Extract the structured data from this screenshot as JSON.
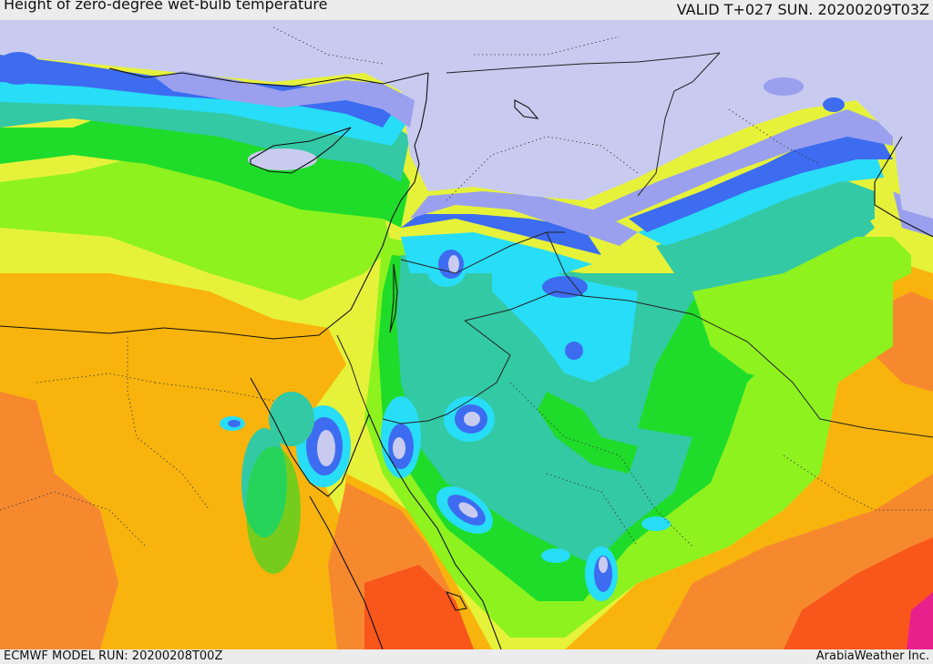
{
  "header": {
    "title": "Height of zero-degree wet-bulb temperature",
    "valid": "VALID T+027 SUN. 20200209T03Z"
  },
  "footer": {
    "model_run": "ECMWF MODEL RUN: 20200208T00Z",
    "credit": "ArabiaWeather Inc."
  },
  "palette": {
    "snow": "#c8cbef",
    "lavender": "#9aa0ee",
    "blue": "#3d6cf0",
    "deep_blue": "#2c4ee6",
    "cyan": "#28ddf7",
    "teal": "#33c9a4",
    "green": "#1fdc2a",
    "lime": "#8ef21f",
    "yellow": "#e6f23a",
    "amber": "#f8b40c",
    "orange": "#f6892e",
    "red_orange": "#f9561c",
    "magenta": "#e8208c"
  }
}
